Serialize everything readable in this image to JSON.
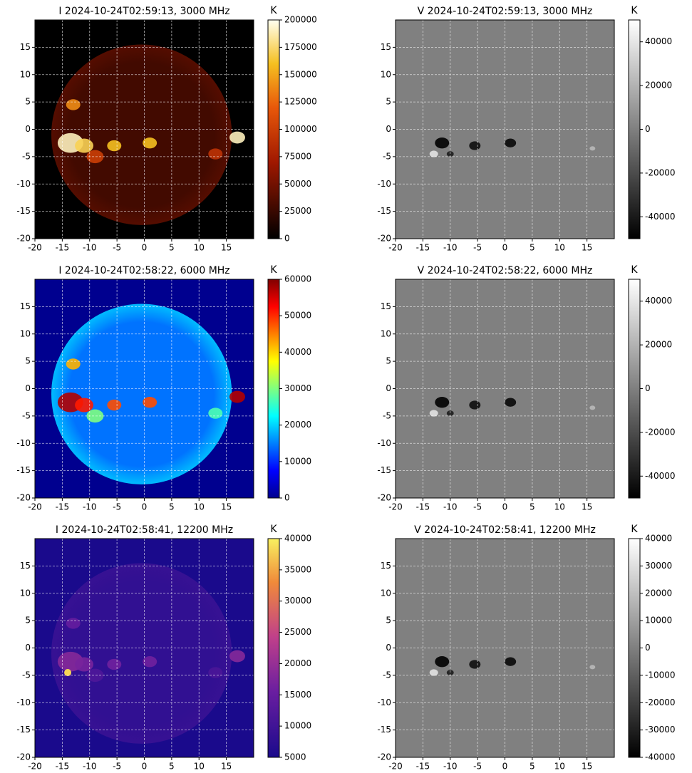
{
  "chart_data": [
    {
      "type": "image",
      "title": "I 2024-10-24T02:59:13, 3000 MHz",
      "colorbar_label": "K",
      "colormap": "hot",
      "clim": [
        0,
        200000
      ],
      "cticks": [
        0,
        25000,
        50000,
        75000,
        100000,
        125000,
        150000,
        175000,
        200000
      ],
      "xlim": [
        -20,
        20
      ],
      "ylim": [
        -20,
        20
      ],
      "xticks": [
        -20,
        -15,
        -10,
        -5,
        0,
        5,
        10,
        15
      ],
      "yticks": [
        -20,
        -15,
        -10,
        -5,
        0,
        5,
        10,
        15
      ],
      "grid": true
    },
    {
      "type": "image",
      "title": "V 2024-10-24T02:59:13, 3000 MHz",
      "colorbar_label": "K",
      "colormap": "gray",
      "clim": [
        -50000,
        50000
      ],
      "cticks": [
        -40000,
        -20000,
        0,
        20000,
        40000
      ],
      "xlim": [
        -20,
        20
      ],
      "ylim": [
        -20,
        20
      ],
      "xticks": [
        -20,
        -15,
        -10,
        -5,
        0,
        5,
        10,
        15
      ],
      "yticks": [
        -20,
        -15,
        -10,
        -5,
        0,
        5,
        10,
        15
      ],
      "grid": true
    },
    {
      "type": "image",
      "title": "I 2024-10-24T02:58:22, 6000 MHz",
      "colorbar_label": "K",
      "colormap": "jet",
      "clim": [
        0,
        60000
      ],
      "cticks": [
        0,
        10000,
        20000,
        30000,
        40000,
        50000,
        60000
      ],
      "xlim": [
        -20,
        20
      ],
      "ylim": [
        -20,
        20
      ],
      "xticks": [
        -20,
        -15,
        -10,
        -5,
        0,
        5,
        10,
        15
      ],
      "yticks": [
        -20,
        -15,
        -10,
        -5,
        0,
        5,
        10,
        15
      ],
      "grid": true
    },
    {
      "type": "image",
      "title": "V 2024-10-24T02:58:22, 6000 MHz",
      "colorbar_label": "K",
      "colormap": "gray",
      "clim": [
        -50000,
        50000
      ],
      "cticks": [
        -40000,
        -20000,
        0,
        20000,
        40000
      ],
      "xlim": [
        -20,
        20
      ],
      "ylim": [
        -20,
        20
      ],
      "xticks": [
        -20,
        -15,
        -10,
        -5,
        0,
        5,
        10,
        15
      ],
      "yticks": [
        -20,
        -15,
        -10,
        -5,
        0,
        5,
        10,
        15
      ],
      "grid": true
    },
    {
      "type": "image",
      "title": "I 2024-10-24T02:58:41, 12200 MHz",
      "colorbar_label": "K",
      "colormap": "plasma",
      "clim": [
        5000,
        40000
      ],
      "cticks": [
        5000,
        10000,
        15000,
        20000,
        25000,
        30000,
        35000,
        40000
      ],
      "xlim": [
        -20,
        20
      ],
      "ylim": [
        -20,
        20
      ],
      "xticks": [
        -20,
        -15,
        -10,
        -5,
        0,
        5,
        10,
        15
      ],
      "yticks": [
        -20,
        -15,
        -10,
        -5,
        0,
        5,
        10,
        15
      ],
      "grid": true
    },
    {
      "type": "image",
      "title": "V 2024-10-24T02:58:41, 12200 MHz",
      "colorbar_label": "K",
      "colormap": "gray",
      "clim": [
        -40000,
        40000
      ],
      "cticks": [
        -40000,
        -30000,
        -20000,
        -10000,
        0,
        10000,
        20000,
        30000,
        40000
      ],
      "xlim": [
        -20,
        20
      ],
      "ylim": [
        -20,
        20
      ],
      "xticks": [
        -20,
        -15,
        -10,
        -5,
        0,
        5,
        10,
        15
      ],
      "yticks": [
        -20,
        -15,
        -10,
        -5,
        0,
        5,
        10,
        15
      ],
      "grid": true
    }
  ]
}
